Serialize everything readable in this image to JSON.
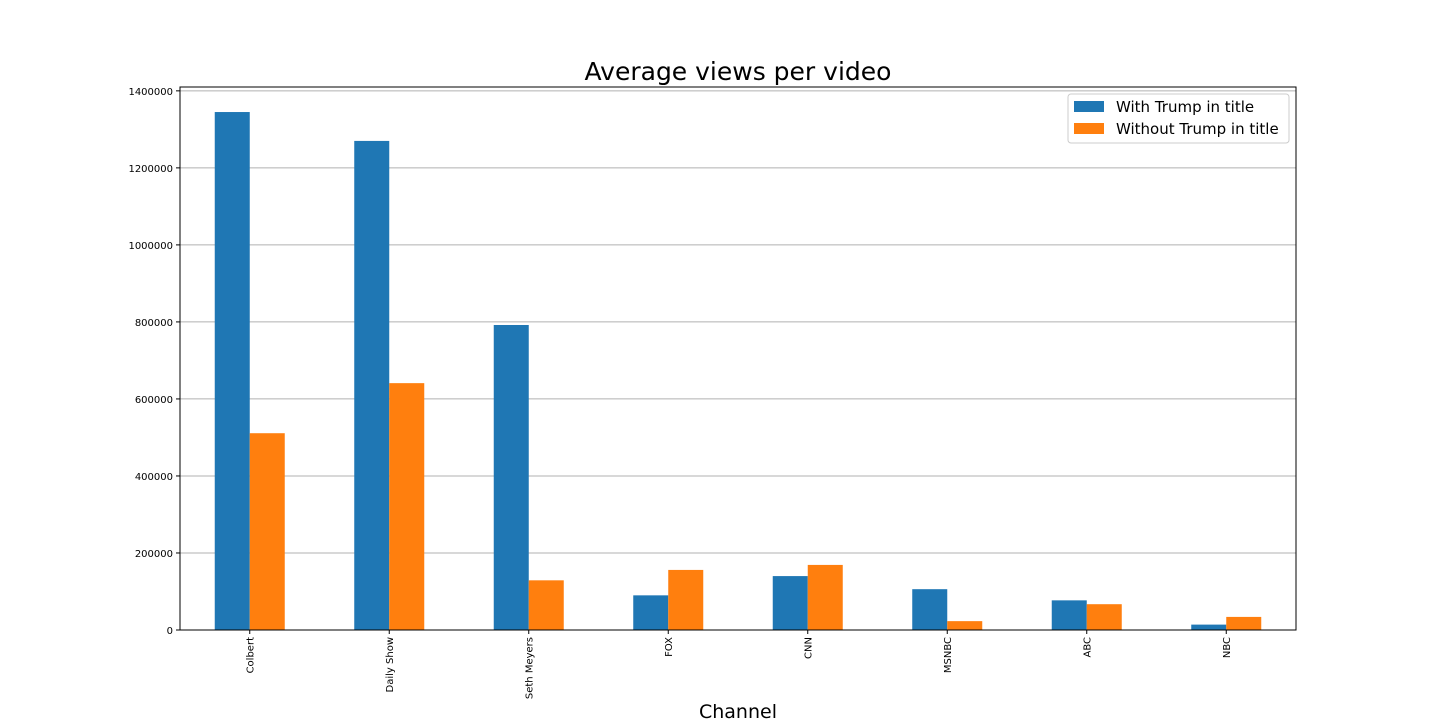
{
  "chart_data": {
    "type": "bar",
    "title": "Average views per video",
    "xlabel": "Channel",
    "ylabel": "",
    "categories": [
      "Colbert",
      "Daily Show",
      "Seth Meyers",
      "FOX",
      "CNN",
      "MSNBC",
      "ABC",
      "NBC"
    ],
    "series": [
      {
        "name": "With Trump in title",
        "color": "#1f77b4",
        "values": [
          1345000,
          1270000,
          792000,
          90000,
          140000,
          106000,
          77000,
          14000
        ]
      },
      {
        "name": "Without Trump in title",
        "color": "#ff7f0e",
        "values": [
          511000,
          641000,
          129000,
          156000,
          169000,
          23000,
          67000,
          34000
        ]
      }
    ],
    "ylim": [
      0,
      1410000
    ],
    "yticks": [
      0,
      200000,
      400000,
      600000,
      800000,
      1000000,
      1200000,
      1400000
    ],
    "ytick_labels": [
      "0",
      "200000",
      "400000",
      "600000",
      "800000",
      "1000000",
      "1200000",
      "1400000"
    ],
    "grid": "y",
    "legend_position": "top-right"
  }
}
